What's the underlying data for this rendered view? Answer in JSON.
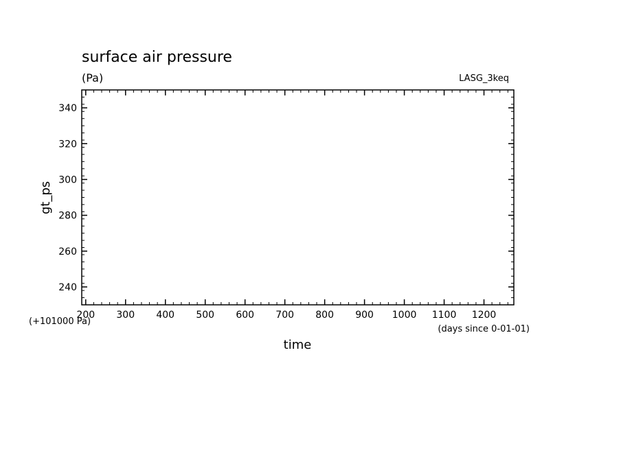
{
  "chart_data": {
    "type": "line",
    "title": "surface air pressure",
    "units": "(Pa)",
    "experiment": "LASG_3keq",
    "xlabel": "time",
    "xunits": "(days since 0-01-01)",
    "ylabel": "gt_ps",
    "yoffset": "(+101000 Pa)",
    "xlim": [
      190,
      1275
    ],
    "ylim": [
      230,
      350
    ],
    "x_ticks": [
      "200",
      "300",
      "400",
      "500",
      "600",
      "700",
      "800",
      "900",
      "1000",
      "1100",
      "1200"
    ],
    "y_ticks": [
      "240",
      "260",
      "280",
      "300",
      "320",
      "340"
    ],
    "series": [],
    "grid": false
  }
}
